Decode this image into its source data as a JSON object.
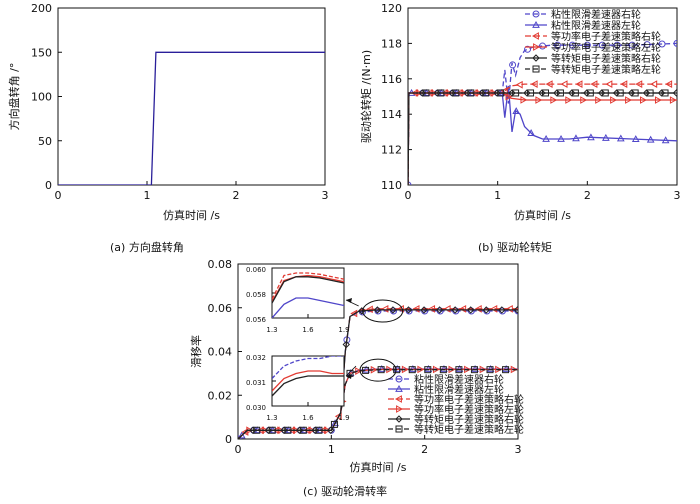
{
  "chart_data": [
    {
      "type": "line",
      "ylabel": "方向盘转角 /°",
      "xlabel": "仿真时间 /s",
      "caption": "(a) 方向盘转角",
      "xlim": [
        0,
        3
      ],
      "ylim": [
        0,
        200
      ],
      "xticks": [
        "0",
        "1",
        "2",
        "3"
      ],
      "yticks": [
        "0",
        "50",
        "100",
        "150",
        "200"
      ],
      "series": [
        {
          "x": [
            0,
            1.05,
            1.1,
            3
          ],
          "y": [
            0,
            0,
            150,
            150
          ],
          "color": "#2a1f9a"
        }
      ]
    },
    {
      "type": "line",
      "ylabel": "驱动轮转矩 /(N·m)",
      "xlabel": "仿真时间 /s",
      "caption": "(b) 驱动轮转矩",
      "xlim": [
        0,
        3
      ],
      "ylim": [
        110,
        120
      ],
      "xticks": [
        "0",
        "1",
        "2",
        "3"
      ],
      "yticks": [
        "110",
        "112",
        "114",
        "116",
        "118",
        "120"
      ],
      "legend_position": "top-right",
      "series": [
        {
          "name": "粘性限滑差速器右轮",
          "color": "#4f46c9",
          "dash": "5,3",
          "marker": "circle",
          "x": [
            0,
            0.01,
            0.05,
            1.0,
            1.05,
            1.08,
            1.12,
            1.16,
            1.2,
            1.25,
            1.3,
            1.4,
            1.6,
            2.0,
            2.5,
            3.0
          ],
          "y": [
            110,
            115.2,
            115.2,
            115.2,
            115.2,
            116.5,
            114.6,
            116.9,
            116.2,
            117.2,
            117.6,
            117.8,
            117.9,
            117.9,
            117.9,
            118.0
          ]
        },
        {
          "name": "粘性限滑差速器左轮",
          "color": "#4f46c9",
          "dash": "",
          "marker": "triangle",
          "x": [
            0,
            0.01,
            0.05,
            1.0,
            1.05,
            1.08,
            1.12,
            1.16,
            1.2,
            1.25,
            1.3,
            1.4,
            1.5,
            1.6,
            1.8,
            2.0,
            2.5,
            3.0
          ],
          "y": [
            110,
            115.2,
            115.2,
            115.2,
            115.2,
            113.8,
            115.6,
            113.0,
            114.2,
            114.0,
            113.3,
            112.8,
            112.6,
            112.6,
            112.6,
            112.7,
            112.6,
            112.5
          ]
        },
        {
          "name": "等功率电子差速策略右轮",
          "color": "#e23b33",
          "dash": "6,3",
          "marker": "triangle-left",
          "x": [
            0,
            0.01,
            0.05,
            1.0,
            1.05,
            1.15,
            1.3,
            3.0
          ],
          "y": [
            110,
            115.2,
            115.2,
            115.2,
            115.2,
            115.6,
            115.7,
            115.7
          ]
        },
        {
          "name": "等功率电子差速策略左轮",
          "color": "#e23b33",
          "dash": "",
          "marker": "triangle-right",
          "x": [
            0,
            0.01,
            0.05,
            1.0,
            1.05,
            1.15,
            1.3,
            3.0
          ],
          "y": [
            110,
            115.2,
            115.2,
            115.2,
            115.2,
            114.9,
            114.8,
            114.8
          ]
        },
        {
          "name": "等转矩电子差速策略右轮",
          "color": "#222222",
          "dash": "",
          "marker": "diamond",
          "x": [
            0,
            0.01,
            0.05,
            3.0
          ],
          "y": [
            110,
            115.2,
            115.2,
            115.2
          ]
        },
        {
          "name": "等转矩电子差速策略左轮",
          "color": "#222222",
          "dash": "5,3",
          "marker": "square",
          "x": [
            0,
            0.01,
            0.05,
            3.0
          ],
          "y": [
            110,
            115.2,
            115.2,
            115.2
          ]
        }
      ]
    },
    {
      "type": "line",
      "ylabel": "滑移率",
      "xlabel": "仿真时间 /s",
      "caption": "(c) 驱动轮滑转率",
      "xlim": [
        0,
        3
      ],
      "ylim": [
        0,
        0.08
      ],
      "xticks": [
        "0",
        "1",
        "2",
        "3"
      ],
      "yticks": [
        "0",
        "0.02",
        "0.04",
        "0.06",
        "0.08"
      ],
      "legend_position": "bottom-right",
      "series": [
        {
          "name": "粘性限滑差速器右轮",
          "color": "#4f46c9",
          "dash": "5,3",
          "marker": "circle",
          "x": [
            0,
            0.1,
            1.0,
            1.1,
            1.15,
            1.2,
            1.3,
            1.5,
            2.0,
            3.0
          ],
          "y": [
            0,
            0.004,
            0.004,
            0.012,
            0.04,
            0.056,
            0.058,
            0.0585,
            0.0585,
            0.0585
          ]
        },
        {
          "name": "粘性限滑差速器左轮",
          "color": "#4f46c9",
          "dash": "",
          "marker": "triangle",
          "x": [
            0,
            0.1,
            1.0,
            1.1,
            1.15,
            1.2,
            1.3,
            1.5,
            2.0,
            3.0
          ],
          "y": [
            0,
            0.004,
            0.004,
            0.012,
            0.025,
            0.03,
            0.0315,
            0.032,
            0.032,
            0.032
          ]
        },
        {
          "name": "等功率电子差速策略右轮",
          "color": "#e23b33",
          "dash": "6,3",
          "marker": "triangle-left",
          "x": [
            0,
            0.1,
            1.0,
            1.1,
            1.15,
            1.2,
            1.3,
            1.5,
            2.0,
            3.0
          ],
          "y": [
            0,
            0.004,
            0.004,
            0.012,
            0.04,
            0.056,
            0.059,
            0.0595,
            0.0595,
            0.0595
          ]
        },
        {
          "name": "等功率电子差速策略左轮",
          "color": "#e23b33",
          "dash": "",
          "marker": "triangle-right",
          "x": [
            0,
            0.1,
            1.0,
            1.1,
            1.15,
            1.2,
            1.3,
            1.5,
            2.0,
            3.0
          ],
          "y": [
            0,
            0.004,
            0.004,
            0.012,
            0.025,
            0.03,
            0.0312,
            0.0318,
            0.0318,
            0.0318
          ]
        },
        {
          "name": "等转矩电子差速策略右轮",
          "color": "#222222",
          "dash": "",
          "marker": "diamond",
          "x": [
            0,
            0.1,
            1.0,
            1.1,
            1.15,
            1.2,
            1.3,
            1.5,
            2.0,
            3.0
          ],
          "y": [
            0,
            0.004,
            0.004,
            0.012,
            0.04,
            0.056,
            0.0585,
            0.059,
            0.059,
            0.059
          ]
        },
        {
          "name": "等转矩电子差速策略左轮",
          "color": "#222222",
          "dash": "5,3",
          "marker": "square",
          "x": [
            0,
            0.1,
            1.0,
            1.1,
            1.15,
            1.2,
            1.3,
            1.5,
            2.0,
            3.0
          ],
          "y": [
            0,
            0.004,
            0.004,
            0.012,
            0.025,
            0.03,
            0.0312,
            0.0317,
            0.0317,
            0.0317
          ]
        }
      ],
      "insets": [
        {
          "xlim": [
            1.3,
            1.9
          ],
          "ylim": [
            0.056,
            0.06
          ],
          "xticks": [
            "1.3",
            "1.6",
            "1.9"
          ],
          "yticks": [
            "0.056",
            "0.058",
            "0.060"
          ],
          "series": [
            {
              "color": "#e23b33",
              "dash": "4,2",
              "x": [
                1.3,
                1.4,
                1.5,
                1.6,
                1.7,
                1.8,
                1.9
              ],
              "y": [
                0.0575,
                0.0594,
                0.0596,
                0.0596,
                0.0595,
                0.0593,
                0.0591
              ]
            },
            {
              "color": "#e23b33",
              "dash": "",
              "x": [
                1.3,
                1.4,
                1.5,
                1.6,
                1.7,
                1.8,
                1.9
              ],
              "y": [
                0.0573,
                0.059,
                0.0593,
                0.0594,
                0.0593,
                0.0591,
                0.0589
              ]
            },
            {
              "color": "#222222",
              "dash": "",
              "x": [
                1.3,
                1.4,
                1.5,
                1.6,
                1.7,
                1.8,
                1.9
              ],
              "y": [
                0.0572,
                0.0589,
                0.0593,
                0.0593,
                0.0592,
                0.059,
                0.0588
              ]
            },
            {
              "color": "#4f46c9",
              "dash": "",
              "x": [
                1.3,
                1.4,
                1.5,
                1.6,
                1.7,
                1.8,
                1.9
              ],
              "y": [
                0.056,
                0.0571,
                0.0576,
                0.0576,
                0.0574,
                0.0572,
                0.057
              ]
            }
          ]
        },
        {
          "xlim": [
            1.3,
            1.9
          ],
          "ylim": [
            0.03,
            0.032
          ],
          "xticks": [
            "1.3",
            "1.6",
            "1.9"
          ],
          "yticks": [
            "0.030",
            "0.031",
            "0.032"
          ],
          "series": [
            {
              "color": "#4f46c9",
              "dash": "4,2",
              "x": [
                1.3,
                1.4,
                1.5,
                1.6,
                1.7,
                1.8,
                1.9
              ],
              "y": [
                0.0311,
                0.0316,
                0.0318,
                0.0319,
                0.0319,
                0.032,
                0.032
              ]
            },
            {
              "color": "#e23b33",
              "dash": "",
              "x": [
                1.3,
                1.4,
                1.5,
                1.6,
                1.7,
                1.8,
                1.9
              ],
              "y": [
                0.0306,
                0.0311,
                0.0313,
                0.0314,
                0.0314,
                0.0313,
                0.0313
              ]
            },
            {
              "color": "#222222",
              "dash": "",
              "x": [
                1.3,
                1.4,
                1.5,
                1.6,
                1.7,
                1.8,
                1.9
              ],
              "y": [
                0.0304,
                0.0309,
                0.0311,
                0.0312,
                0.0312,
                0.0312,
                0.0312
              ]
            }
          ]
        }
      ]
    }
  ]
}
